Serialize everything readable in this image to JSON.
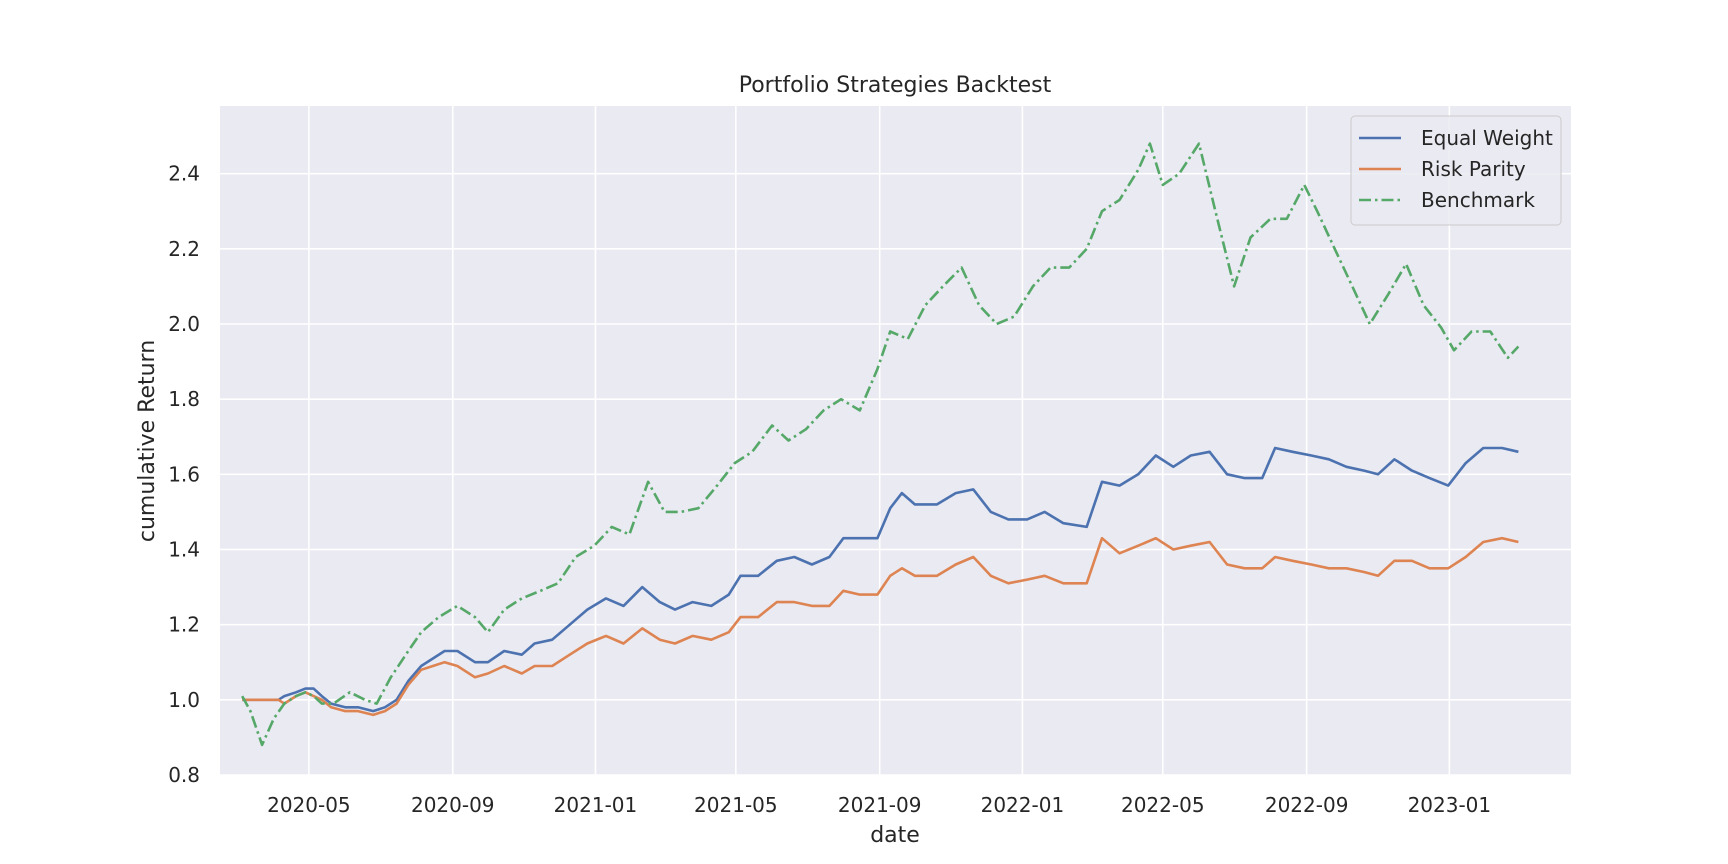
{
  "chart_data": {
    "type": "line",
    "title": "Portfolio Strategies Backtest",
    "xlabel": "date",
    "ylabel": "cumulative Return",
    "x_axis_type": "date",
    "xlim": [
      "2020-02-15",
      "2023-04-15"
    ],
    "ylim": [
      0.8,
      2.58
    ],
    "x_ticks": [
      "2020-05",
      "2020-09",
      "2021-01",
      "2021-05",
      "2021-09",
      "2022-01",
      "2022-05",
      "2022-09",
      "2023-01"
    ],
    "y_ticks": [
      0.8,
      1.0,
      1.2,
      1.4,
      1.6,
      1.8,
      2.0,
      2.2,
      2.4
    ],
    "grid": true,
    "legend_position": "top-right",
    "background_color": "#eaeaf2",
    "series": [
      {
        "name": "Equal Weight",
        "color": "#4c72b0",
        "style": "solid",
        "points": [
          [
            "2020-03-05",
            1.0
          ],
          [
            "2020-03-15",
            1.0
          ],
          [
            "2020-03-25",
            1.0
          ],
          [
            "2020-04-05",
            1.0
          ],
          [
            "2020-04-10",
            1.01
          ],
          [
            "2020-04-20",
            1.02
          ],
          [
            "2020-04-28",
            1.03
          ],
          [
            "2020-05-05",
            1.03
          ],
          [
            "2020-05-12",
            1.01
          ],
          [
            "2020-05-20",
            0.99
          ],
          [
            "2020-06-01",
            0.98
          ],
          [
            "2020-06-12",
            0.98
          ],
          [
            "2020-06-25",
            0.97
          ],
          [
            "2020-07-05",
            0.98
          ],
          [
            "2020-07-15",
            1.0
          ],
          [
            "2020-07-25",
            1.05
          ],
          [
            "2020-08-05",
            1.09
          ],
          [
            "2020-08-15",
            1.11
          ],
          [
            "2020-08-25",
            1.13
          ],
          [
            "2020-09-05",
            1.13
          ],
          [
            "2020-09-20",
            1.1
          ],
          [
            "2020-10-01",
            1.1
          ],
          [
            "2020-10-15",
            1.13
          ],
          [
            "2020-10-30",
            1.12
          ],
          [
            "2020-11-10",
            1.15
          ],
          [
            "2020-11-25",
            1.16
          ],
          [
            "2020-12-10",
            1.2
          ],
          [
            "2020-12-25",
            1.24
          ],
          [
            "2021-01-10",
            1.27
          ],
          [
            "2021-01-25",
            1.25
          ],
          [
            "2021-02-10",
            1.3
          ],
          [
            "2021-02-25",
            1.26
          ],
          [
            "2021-03-10",
            1.24
          ],
          [
            "2021-03-25",
            1.26
          ],
          [
            "2021-04-10",
            1.25
          ],
          [
            "2021-04-25",
            1.28
          ],
          [
            "2021-05-05",
            1.33
          ],
          [
            "2021-05-20",
            1.33
          ],
          [
            "2021-06-05",
            1.37
          ],
          [
            "2021-06-20",
            1.38
          ],
          [
            "2021-07-05",
            1.36
          ],
          [
            "2021-07-20",
            1.38
          ],
          [
            "2021-08-01",
            1.43
          ],
          [
            "2021-08-15",
            1.43
          ],
          [
            "2021-08-30",
            1.43
          ],
          [
            "2021-09-10",
            1.51
          ],
          [
            "2021-09-20",
            1.55
          ],
          [
            "2021-10-01",
            1.52
          ],
          [
            "2021-10-20",
            1.52
          ],
          [
            "2021-11-05",
            1.55
          ],
          [
            "2021-11-20",
            1.56
          ],
          [
            "2021-12-05",
            1.5
          ],
          [
            "2021-12-20",
            1.48
          ],
          [
            "2022-01-05",
            1.48
          ],
          [
            "2022-01-20",
            1.5
          ],
          [
            "2022-02-05",
            1.47
          ],
          [
            "2022-02-25",
            1.46
          ],
          [
            "2022-03-10",
            1.58
          ],
          [
            "2022-03-25",
            1.57
          ],
          [
            "2022-04-10",
            1.6
          ],
          [
            "2022-04-25",
            1.65
          ],
          [
            "2022-05-10",
            1.62
          ],
          [
            "2022-05-25",
            1.65
          ],
          [
            "2022-06-10",
            1.66
          ],
          [
            "2022-06-25",
            1.6
          ],
          [
            "2022-07-10",
            1.59
          ],
          [
            "2022-07-25",
            1.59
          ],
          [
            "2022-08-05",
            1.67
          ],
          [
            "2022-08-20",
            1.66
          ],
          [
            "2022-09-05",
            1.65
          ],
          [
            "2022-09-20",
            1.64
          ],
          [
            "2022-10-05",
            1.62
          ],
          [
            "2022-10-20",
            1.61
          ],
          [
            "2022-11-01",
            1.6
          ],
          [
            "2022-11-15",
            1.64
          ],
          [
            "2022-11-30",
            1.61
          ],
          [
            "2022-12-15",
            1.59
          ],
          [
            "2022-12-31",
            1.57
          ],
          [
            "2023-01-15",
            1.63
          ],
          [
            "2023-01-30",
            1.67
          ],
          [
            "2023-02-15",
            1.67
          ],
          [
            "2023-03-01",
            1.66
          ]
        ]
      },
      {
        "name": "Risk Parity",
        "color": "#dd8452",
        "style": "solid",
        "points": [
          [
            "2020-03-05",
            1.0
          ],
          [
            "2020-03-15",
            1.0
          ],
          [
            "2020-03-25",
            1.0
          ],
          [
            "2020-04-05",
            1.0
          ],
          [
            "2020-04-10",
            0.99
          ],
          [
            "2020-04-20",
            1.01
          ],
          [
            "2020-04-28",
            1.02
          ],
          [
            "2020-05-05",
            1.01
          ],
          [
            "2020-05-12",
            1.0
          ],
          [
            "2020-05-20",
            0.98
          ],
          [
            "2020-06-01",
            0.97
          ],
          [
            "2020-06-12",
            0.97
          ],
          [
            "2020-06-25",
            0.96
          ],
          [
            "2020-07-05",
            0.97
          ],
          [
            "2020-07-15",
            0.99
          ],
          [
            "2020-07-25",
            1.04
          ],
          [
            "2020-08-05",
            1.08
          ],
          [
            "2020-08-15",
            1.09
          ],
          [
            "2020-08-25",
            1.1
          ],
          [
            "2020-09-05",
            1.09
          ],
          [
            "2020-09-20",
            1.06
          ],
          [
            "2020-10-01",
            1.07
          ],
          [
            "2020-10-15",
            1.09
          ],
          [
            "2020-10-30",
            1.07
          ],
          [
            "2020-11-10",
            1.09
          ],
          [
            "2020-11-25",
            1.09
          ],
          [
            "2020-12-10",
            1.12
          ],
          [
            "2020-12-25",
            1.15
          ],
          [
            "2021-01-10",
            1.17
          ],
          [
            "2021-01-25",
            1.15
          ],
          [
            "2021-02-10",
            1.19
          ],
          [
            "2021-02-25",
            1.16
          ],
          [
            "2021-03-10",
            1.15
          ],
          [
            "2021-03-25",
            1.17
          ],
          [
            "2021-04-10",
            1.16
          ],
          [
            "2021-04-25",
            1.18
          ],
          [
            "2021-05-05",
            1.22
          ],
          [
            "2021-05-20",
            1.22
          ],
          [
            "2021-06-05",
            1.26
          ],
          [
            "2021-06-20",
            1.26
          ],
          [
            "2021-07-05",
            1.25
          ],
          [
            "2021-07-20",
            1.25
          ],
          [
            "2021-08-01",
            1.29
          ],
          [
            "2021-08-15",
            1.28
          ],
          [
            "2021-08-30",
            1.28
          ],
          [
            "2021-09-10",
            1.33
          ],
          [
            "2021-09-20",
            1.35
          ],
          [
            "2021-10-01",
            1.33
          ],
          [
            "2021-10-20",
            1.33
          ],
          [
            "2021-11-05",
            1.36
          ],
          [
            "2021-11-20",
            1.38
          ],
          [
            "2021-12-05",
            1.33
          ],
          [
            "2021-12-20",
            1.31
          ],
          [
            "2022-01-05",
            1.32
          ],
          [
            "2022-01-20",
            1.33
          ],
          [
            "2022-02-05",
            1.31
          ],
          [
            "2022-02-25",
            1.31
          ],
          [
            "2022-03-10",
            1.43
          ],
          [
            "2022-03-25",
            1.39
          ],
          [
            "2022-04-10",
            1.41
          ],
          [
            "2022-04-25",
            1.43
          ],
          [
            "2022-05-10",
            1.4
          ],
          [
            "2022-05-25",
            1.41
          ],
          [
            "2022-06-10",
            1.42
          ],
          [
            "2022-06-25",
            1.36
          ],
          [
            "2022-07-10",
            1.35
          ],
          [
            "2022-07-25",
            1.35
          ],
          [
            "2022-08-05",
            1.38
          ],
          [
            "2022-08-20",
            1.37
          ],
          [
            "2022-09-05",
            1.36
          ],
          [
            "2022-09-20",
            1.35
          ],
          [
            "2022-10-05",
            1.35
          ],
          [
            "2022-10-20",
            1.34
          ],
          [
            "2022-11-01",
            1.33
          ],
          [
            "2022-11-15",
            1.37
          ],
          [
            "2022-11-30",
            1.37
          ],
          [
            "2022-12-15",
            1.35
          ],
          [
            "2022-12-31",
            1.35
          ],
          [
            "2023-01-15",
            1.38
          ],
          [
            "2023-01-30",
            1.42
          ],
          [
            "2023-02-15",
            1.43
          ],
          [
            "2023-03-01",
            1.42
          ]
        ]
      },
      {
        "name": "Benchmark",
        "color": "#55a868",
        "style": "dashdot",
        "points": [
          [
            "2020-03-05",
            1.01
          ],
          [
            "2020-03-12",
            0.97
          ],
          [
            "2020-03-22",
            0.88
          ],
          [
            "2020-04-01",
            0.95
          ],
          [
            "2020-04-10",
            0.99
          ],
          [
            "2020-04-20",
            1.01
          ],
          [
            "2020-04-28",
            1.02
          ],
          [
            "2020-05-05",
            1.01
          ],
          [
            "2020-05-12",
            0.99
          ],
          [
            "2020-05-22",
            0.99
          ],
          [
            "2020-06-05",
            1.02
          ],
          [
            "2020-06-18",
            1.0
          ],
          [
            "2020-06-28",
            0.99
          ],
          [
            "2020-07-10",
            1.06
          ],
          [
            "2020-07-25",
            1.13
          ],
          [
            "2020-08-05",
            1.18
          ],
          [
            "2020-08-20",
            1.22
          ],
          [
            "2020-09-05",
            1.25
          ],
          [
            "2020-09-20",
            1.22
          ],
          [
            "2020-10-01",
            1.18
          ],
          [
            "2020-10-15",
            1.24
          ],
          [
            "2020-10-30",
            1.27
          ],
          [
            "2020-11-15",
            1.29
          ],
          [
            "2020-11-30",
            1.31
          ],
          [
            "2020-12-15",
            1.38
          ],
          [
            "2020-12-31",
            1.41
          ],
          [
            "2021-01-15",
            1.46
          ],
          [
            "2021-01-30",
            1.44
          ],
          [
            "2021-02-15",
            1.58
          ],
          [
            "2021-03-01",
            1.5
          ],
          [
            "2021-03-15",
            1.5
          ],
          [
            "2021-03-30",
            1.51
          ],
          [
            "2021-04-15",
            1.57
          ],
          [
            "2021-04-30",
            1.63
          ],
          [
            "2021-05-15",
            1.66
          ],
          [
            "2021-06-01",
            1.73
          ],
          [
            "2021-06-15",
            1.69
          ],
          [
            "2021-06-30",
            1.72
          ],
          [
            "2021-07-15",
            1.77
          ],
          [
            "2021-07-30",
            1.8
          ],
          [
            "2021-08-15",
            1.77
          ],
          [
            "2021-08-30",
            1.88
          ],
          [
            "2021-09-10",
            1.98
          ],
          [
            "2021-09-25",
            1.96
          ],
          [
            "2021-10-10",
            2.05
          ],
          [
            "2021-10-25",
            2.1
          ],
          [
            "2021-11-10",
            2.15
          ],
          [
            "2021-11-25",
            2.05
          ],
          [
            "2021-12-10",
            2.0
          ],
          [
            "2021-12-25",
            2.02
          ],
          [
            "2022-01-10",
            2.1
          ],
          [
            "2022-01-25",
            2.15
          ],
          [
            "2022-02-10",
            2.15
          ],
          [
            "2022-02-25",
            2.2
          ],
          [
            "2022-03-10",
            2.3
          ],
          [
            "2022-03-25",
            2.33
          ],
          [
            "2022-04-10",
            2.41
          ],
          [
            "2022-04-20",
            2.48
          ],
          [
            "2022-05-01",
            2.37
          ],
          [
            "2022-05-15",
            2.4
          ],
          [
            "2022-06-01",
            2.48
          ],
          [
            "2022-06-15",
            2.3
          ],
          [
            "2022-07-01",
            2.1
          ],
          [
            "2022-07-15",
            2.23
          ],
          [
            "2022-08-01",
            2.28
          ],
          [
            "2022-08-15",
            2.28
          ],
          [
            "2022-08-30",
            2.37
          ],
          [
            "2022-09-10",
            2.3
          ],
          [
            "2022-09-25",
            2.2
          ],
          [
            "2022-10-10",
            2.1
          ],
          [
            "2022-10-25",
            2.0
          ],
          [
            "2022-11-10",
            2.08
          ],
          [
            "2022-11-25",
            2.16
          ],
          [
            "2022-12-10",
            2.05
          ],
          [
            "2022-12-25",
            1.99
          ],
          [
            "2023-01-05",
            1.93
          ],
          [
            "2023-01-20",
            1.98
          ],
          [
            "2023-02-05",
            1.98
          ],
          [
            "2023-02-20",
            1.91
          ],
          [
            "2023-03-01",
            1.94
          ]
        ]
      }
    ]
  }
}
